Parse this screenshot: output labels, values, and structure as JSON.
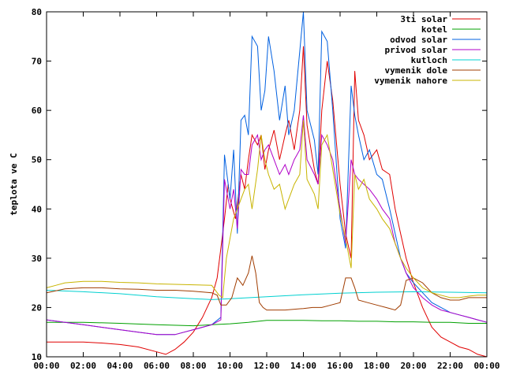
{
  "chart_data": {
    "type": "line",
    "title": "",
    "xlabel": "",
    "ylabel": "teplota ve C",
    "ylim": [
      10,
      80
    ],
    "xlim": [
      0,
      24
    ],
    "yticks": [
      10,
      20,
      30,
      40,
      50,
      60,
      70,
      80
    ],
    "xticks": [
      0,
      2,
      4,
      6,
      8,
      10,
      12,
      14,
      16,
      18,
      20,
      22,
      24
    ],
    "xtick_labels": [
      "00:00",
      "02:00",
      "04:00",
      "06:00",
      "08:00",
      "10:00",
      "12:00",
      "14:00",
      "16:00",
      "18:00",
      "20:00",
      "22:00",
      "00:00"
    ],
    "grid": false,
    "legend_position": "top-right",
    "series": [
      {
        "name": "3ti solar",
        "color": "#e00000",
        "x": [
          0,
          1,
          2,
          3,
          4,
          5,
          6,
          6.5,
          7,
          7.5,
          8,
          8.5,
          9,
          9.3,
          9.5,
          9.7,
          9.9,
          10,
          10.3,
          10.6,
          10.8,
          11,
          11.2,
          11.5,
          11.7,
          11.9,
          12.1,
          12.4,
          12.7,
          13,
          13.2,
          13.5,
          13.8,
          14,
          14.2,
          14.6,
          14.8,
          15,
          15.3,
          15.6,
          16,
          16.3,
          16.6,
          16.8,
          17,
          17.3,
          17.6,
          18,
          18.3,
          18.7,
          19,
          19.3,
          19.6,
          20,
          20.5,
          21,
          21.5,
          22,
          22.5,
          23,
          23.5,
          24
        ],
        "y": [
          13,
          13,
          13,
          12.8,
          12.5,
          12,
          11,
          10.5,
          11.5,
          13,
          15,
          18,
          22,
          26,
          32,
          38,
          45,
          42,
          38,
          47,
          44,
          50,
          55,
          53,
          55,
          48,
          52,
          56,
          50,
          55,
          58,
          52,
          60,
          73,
          57,
          48,
          45,
          60,
          70,
          62,
          45,
          35,
          30,
          68,
          58,
          55,
          50,
          52,
          48,
          47,
          40,
          35,
          30,
          25,
          20,
          16,
          14,
          13,
          12,
          11.5,
          10.5,
          10
        ]
      },
      {
        "name": "kotel",
        "color": "#00a000",
        "x": [
          0,
          2,
          4,
          6,
          8,
          9,
          10,
          11,
          12,
          13,
          14,
          15,
          16,
          17,
          18,
          19,
          20,
          21,
          22,
          23,
          24
        ],
        "y": [
          17,
          17,
          16.8,
          16.5,
          16.3,
          16.5,
          16.7,
          17,
          17.4,
          17.4,
          17.4,
          17.3,
          17.3,
          17.2,
          17.2,
          17.1,
          17.1,
          17,
          17,
          16.8,
          16.8
        ]
      },
      {
        "name": "odvod solar",
        "color": "#0060e0",
        "x": [
          0,
          1,
          2,
          3,
          4,
          5,
          6,
          6.5,
          7,
          7.5,
          8,
          8.5,
          9,
          9.5,
          9.7,
          9.9,
          10,
          10.2,
          10.4,
          10.6,
          10.8,
          11,
          11.2,
          11.5,
          11.7,
          11.9,
          12.1,
          12.4,
          12.7,
          13,
          13.2,
          13.5,
          13.8,
          14,
          14.2,
          14.6,
          14.8,
          15,
          15.3,
          15.6,
          16,
          16.3,
          16.6,
          16.8,
          17,
          17.3,
          17.6,
          18,
          18.3,
          18.7,
          19,
          19.3,
          19.6,
          20,
          20.5,
          21,
          21.5,
          22,
          22.5,
          23,
          23.5,
          24
        ],
        "y": [
          17.5,
          17,
          16.5,
          16,
          15.5,
          15,
          14.5,
          14.5,
          14.5,
          15,
          15.5,
          16,
          16.5,
          18,
          51,
          45,
          42,
          52,
          35,
          58,
          59,
          55,
          75,
          73,
          60,
          64,
          75,
          68,
          58,
          65,
          55,
          60,
          72,
          80,
          60,
          54,
          47,
          76,
          74,
          60,
          38,
          32,
          65,
          59,
          55,
          50,
          52,
          47,
          46,
          40,
          35,
          30,
          27,
          25,
          23,
          21,
          20,
          19,
          18.5,
          18,
          17.5,
          17
        ]
      },
      {
        "name": "privod solar",
        "color": "#b000c8",
        "x": [
          0,
          1,
          2,
          3,
          4,
          5,
          6,
          6.5,
          7,
          7.5,
          8,
          8.5,
          9,
          9.5,
          9.7,
          9.9,
          10,
          10.2,
          10.4,
          10.6,
          10.8,
          11,
          11.2,
          11.5,
          11.7,
          11.9,
          12.1,
          12.4,
          12.7,
          13,
          13.2,
          13.5,
          13.8,
          14,
          14.2,
          14.6,
          14.8,
          15,
          15.3,
          15.6,
          16,
          16.3,
          16.6,
          16.8,
          17,
          17.3,
          17.6,
          18,
          18.3,
          18.7,
          19,
          19.3,
          19.6,
          20,
          20.5,
          21,
          21.5,
          22,
          22.5,
          23,
          23.5,
          24
        ],
        "y": [
          17.5,
          17,
          16.5,
          16,
          15.5,
          15,
          14.5,
          14.5,
          14.5,
          15,
          15.5,
          16,
          16.5,
          17.5,
          46,
          42,
          40,
          44,
          36,
          48,
          47,
          47,
          53,
          55,
          50,
          52,
          53,
          50,
          47,
          49,
          47,
          50,
          52,
          59,
          50,
          47,
          45,
          55,
          53,
          50,
          40,
          33,
          50,
          47,
          46,
          45,
          44,
          42,
          40,
          38,
          33,
          30,
          27,
          24,
          22,
          20.5,
          19.5,
          19,
          18.5,
          18,
          17.5,
          17
        ]
      },
      {
        "name": "kutloch",
        "color": "#00d0d0",
        "x": [
          0,
          2,
          4,
          6,
          8,
          9,
          10,
          12,
          14,
          16,
          18,
          20,
          22,
          24
        ],
        "y": [
          23.5,
          23.2,
          22.8,
          22.2,
          21.8,
          21.6,
          21.8,
          22.2,
          22.6,
          22.9,
          23.1,
          23.2,
          23.1,
          23
        ]
      },
      {
        "name": "vymenik dole",
        "color": "#a03c00",
        "x": [
          0,
          1,
          2,
          3,
          4,
          5,
          6,
          7,
          8,
          9,
          9.3,
          9.5,
          9.8,
          10.1,
          10.4,
          10.7,
          11,
          11.2,
          11.4,
          11.6,
          11.8,
          12,
          12.5,
          13,
          14,
          14.5,
          15,
          15.5,
          16,
          16.3,
          16.6,
          16.8,
          17,
          17.5,
          18,
          18.5,
          19,
          19.3,
          19.6,
          20,
          20.5,
          21,
          21.5,
          22,
          22.5,
          23,
          24
        ],
        "y": [
          23,
          23.8,
          24,
          24,
          23.8,
          23.7,
          23.5,
          23.5,
          23.3,
          23,
          22.5,
          20.5,
          20.5,
          22,
          26,
          24.5,
          27,
          30.5,
          27,
          21,
          20,
          19.5,
          19.5,
          19.5,
          19.8,
          20,
          20,
          20.5,
          21,
          26,
          26,
          24,
          21.5,
          21,
          20.5,
          20,
          19.5,
          20.5,
          25.5,
          26,
          25,
          23,
          22,
          21.5,
          21.5,
          22,
          22
        ]
      },
      {
        "name": "vymenik nahore",
        "color": "#c8b400",
        "x": [
          0,
          0.5,
          1,
          2,
          3,
          4,
          5,
          6,
          7,
          8,
          9,
          9.4,
          9.6,
          9.8,
          10,
          10.2,
          10.4,
          10.6,
          10.8,
          11,
          11.2,
          11.5,
          11.7,
          11.9,
          12.1,
          12.4,
          12.7,
          13,
          13.2,
          13.5,
          13.8,
          14,
          14.2,
          14.6,
          14.8,
          15,
          15.3,
          15.6,
          16,
          16.3,
          16.6,
          16.8,
          17,
          17.3,
          17.6,
          18,
          18.3,
          18.7,
          19,
          19.3,
          19.6,
          20,
          20.5,
          21,
          21.5,
          22,
          22.5,
          23,
          23.5,
          24
        ],
        "y": [
          24,
          24.5,
          25,
          25.3,
          25.3,
          25.1,
          25,
          24.8,
          24.7,
          24.6,
          24.5,
          22.5,
          22,
          30,
          34,
          38,
          40,
          42,
          44,
          45,
          40,
          48,
          55,
          50,
          47,
          44,
          45,
          40,
          42,
          45,
          47,
          58,
          46,
          43,
          40,
          53,
          55,
          48,
          39,
          34,
          28,
          47,
          44,
          46,
          42,
          40,
          38,
          36,
          33,
          30,
          28,
          26,
          24,
          23,
          22.5,
          22,
          22,
          22.3,
          22.5,
          22.5
        ]
      }
    ]
  }
}
